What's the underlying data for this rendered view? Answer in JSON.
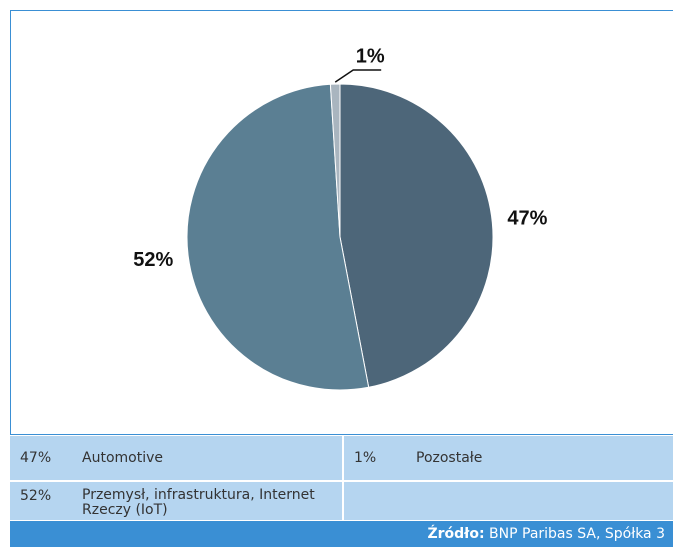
{
  "chart_data": {
    "type": "pie",
    "categories": [
      "Automotive",
      "Przemysł, infrastruktura, Internet Rzeczy (IoT)",
      "Pozostałe"
    ],
    "values": [
      47,
      52,
      1
    ],
    "value_labels": [
      "47%",
      "52%",
      "1%"
    ],
    "colors": [
      "#4d6679",
      "#5b7f93",
      "#a9b5bf"
    ],
    "source_label": "Źródło:",
    "source": "BNP Paribas SA, Spółka 3"
  }
}
